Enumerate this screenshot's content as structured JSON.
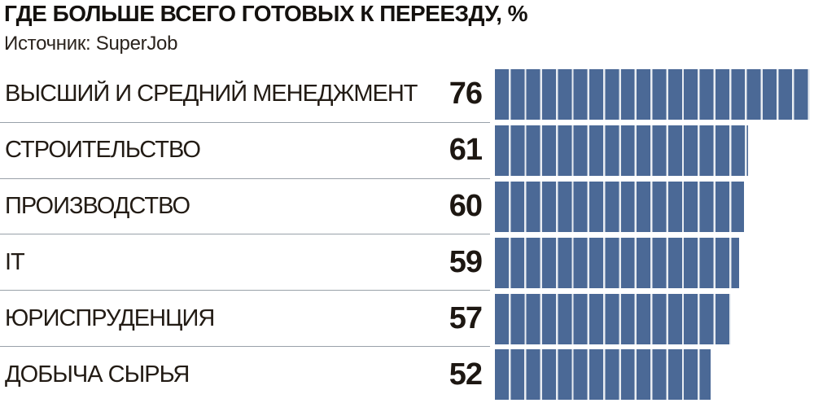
{
  "header": {
    "title": "ГДЕ БОЛЬШЕ ВСЕГО ГОТОВЫХ К ПЕРЕЕЗДУ, %",
    "source": "Источник: SuperJob"
  },
  "chart_data": {
    "type": "bar",
    "orientation": "horizontal",
    "title": "ГДЕ БОЛЬШЕ ВСЕГО ГОТОВЫХ К ПЕРЕЕЗДУ, %",
    "source": "Источник: SuperJob",
    "unit": "%",
    "categories": [
      "ВЫСШИЙ И СРЕДНИЙ МЕНЕДЖМЕНТ",
      "СТРОИТЕЛЬСТВО",
      "ПРОИЗВОДСТВО",
      "IT",
      "ЮРИСПРУДЕНЦИЯ",
      "ДОБЫЧА СЫРЬЯ"
    ],
    "values": [
      76,
      61,
      60,
      59,
      57,
      52
    ],
    "xlim": [
      0,
      76
    ],
    "value_labels_shown": true,
    "legend": "none",
    "grid": false,
    "bar_style": "striped-segments"
  },
  "colors": {
    "bar": "#4b6996",
    "stripe_gap": "#e9edf2",
    "separator": "#99a1a9",
    "title_text": "#14110e",
    "label_text": "#221b14",
    "background": "#ffffff"
  }
}
